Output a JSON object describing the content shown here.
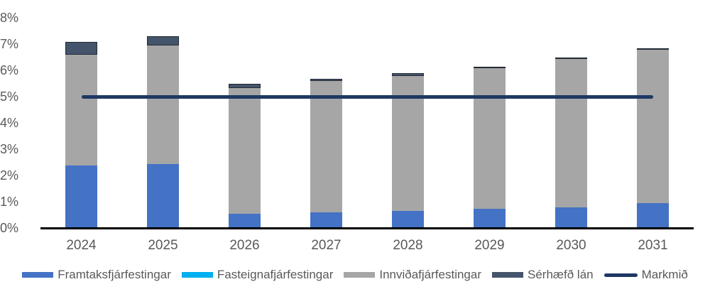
{
  "chart_data": {
    "type": "bar",
    "stacked": true,
    "title": "",
    "xlabel": "",
    "ylabel": "",
    "categories": [
      "2024",
      "2025",
      "2026",
      "2027",
      "2028",
      "2029",
      "2030",
      "2031"
    ],
    "series": [
      {
        "name": "Framtaksfjárfestingar",
        "type": "bar",
        "color": "#4472C4",
        "values": [
          2.4,
          2.45,
          0.55,
          0.6,
          0.65,
          0.75,
          0.8,
          0.95
        ]
      },
      {
        "name": "Fasteignafjárfestingar",
        "type": "bar",
        "color": "#00B0F0",
        "values": [
          0,
          0,
          0,
          0,
          0,
          0,
          0,
          0
        ]
      },
      {
        "name": "Innviðafjárfestingar",
        "type": "bar",
        "color": "#A6A6A6",
        "values": [
          4.2,
          4.5,
          4.8,
          5.0,
          5.15,
          5.35,
          5.65,
          5.85
        ]
      },
      {
        "name": "Sérhæfð lán",
        "type": "bar",
        "color": "#44546A",
        "border_color": "#222A35",
        "values": [
          0.5,
          0.35,
          0.15,
          0.1,
          0.1,
          0.05,
          0.05,
          0.05
        ]
      },
      {
        "name": "Markmið",
        "type": "line",
        "color": "#1F3864",
        "values": [
          5,
          5,
          5,
          5,
          5,
          5,
          5,
          5
        ]
      }
    ],
    "y_axis": {
      "min": 0,
      "max": 8,
      "step": 1,
      "tick_labels": [
        "0%",
        "1%",
        "2%",
        "3%",
        "4%",
        "5%",
        "6%",
        "7%",
        "8%"
      ]
    },
    "x_axis": {
      "line_color": "#000000"
    },
    "grid": false,
    "legend_position": "bottom",
    "colors": {
      "axis_text": "#595959",
      "background": "#ffffff"
    }
  }
}
